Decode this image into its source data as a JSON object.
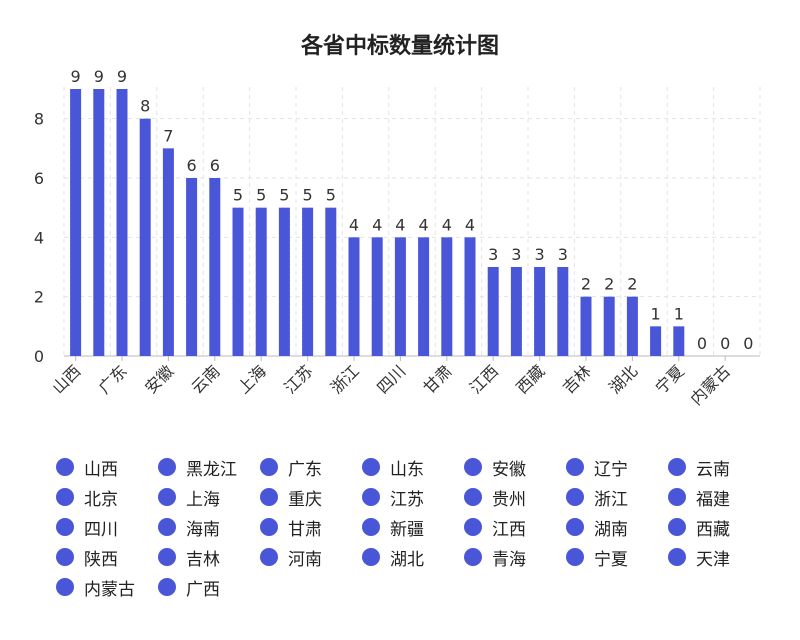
{
  "chart_data": {
    "type": "bar",
    "title": "各省中标数量统计图",
    "xlabel": "",
    "ylabel": "",
    "ylim": [
      0,
      9
    ],
    "yticks": [
      0,
      2,
      4,
      6,
      8
    ],
    "grid": true,
    "legend_position": "bottom",
    "bar_color": "#4a56d8",
    "categories": [
      "山西",
      "黑龙江",
      "广东",
      "山东",
      "安徽",
      "辽宁",
      "云南",
      "北京",
      "上海",
      "重庆",
      "江苏",
      "贵州",
      "浙江",
      "福建",
      "四川",
      "海南",
      "甘肃",
      "新疆",
      "江西",
      "湖南",
      "西藏",
      "陕西",
      "吉林",
      "河南",
      "湖北",
      "青海",
      "宁夏",
      "天津",
      "内蒙古",
      "广西"
    ],
    "values": [
      9,
      9,
      9,
      8,
      7,
      6,
      6,
      5,
      5,
      5,
      5,
      5,
      4,
      4,
      4,
      4,
      4,
      4,
      3,
      3,
      3,
      3,
      2,
      2,
      2,
      1,
      1,
      0,
      0,
      0
    ],
    "shown_x_labels": [
      "山西",
      "广东",
      "安徽",
      "云南",
      "上海",
      "江苏",
      "浙江",
      "四川",
      "甘肃",
      "江西",
      "西藏",
      "吉林",
      "湖北",
      "宁夏",
      "内蒙古"
    ]
  },
  "legend": {
    "items": [
      "山西",
      "黑龙江",
      "广东",
      "山东",
      "安徽",
      "辽宁",
      "云南",
      "北京",
      "上海",
      "重庆",
      "江苏",
      "贵州",
      "浙江",
      "福建",
      "四川",
      "海南",
      "甘肃",
      "新疆",
      "江西",
      "湖南",
      "西藏",
      "陕西",
      "吉林",
      "河南",
      "湖北",
      "青海",
      "宁夏",
      "天津",
      "内蒙古",
      "广西"
    ],
    "dot_color": "#4a56d8"
  }
}
